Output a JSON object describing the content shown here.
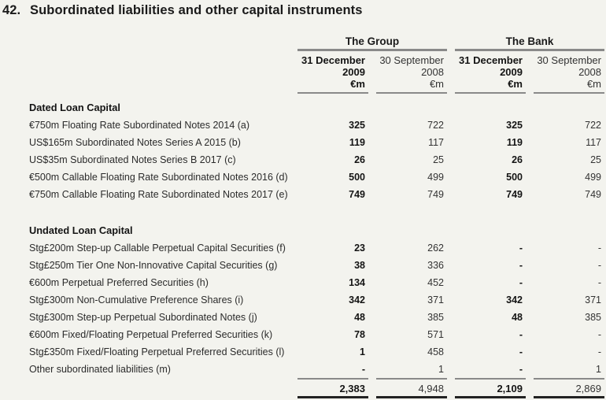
{
  "page": {
    "title_number": "42.",
    "title": "Subordinated liabilities and other capital instruments"
  },
  "colors": {
    "background": "#f3f3ee",
    "rule_gray": "#898989",
    "rule_dark": "#222222",
    "text": "#2d2d2d",
    "text_bold": "#141414"
  },
  "table": {
    "column_groups": [
      {
        "label": "The Group"
      },
      {
        "label": "The Bank"
      }
    ],
    "columns": [
      {
        "line1": "31 December",
        "line2": "2009",
        "line3": "€m",
        "bold": true
      },
      {
        "line1": "30 September",
        "line2": "2008",
        "line3": "€m",
        "bold": false
      },
      {
        "line1": "31 December",
        "line2": "2009",
        "line3": "€m",
        "bold": true
      },
      {
        "line1": "30 September",
        "line2": "2008",
        "line3": "€m",
        "bold": false
      }
    ],
    "sections": [
      {
        "heading": "Dated Loan Capital",
        "rows": [
          {
            "label": "€750m Floating Rate Subordinated Notes 2014 (a)",
            "values": [
              "325",
              "722",
              "325",
              "722"
            ]
          },
          {
            "label": "US$165m Subordinated Notes Series A 2015 (b)",
            "values": [
              "119",
              "117",
              "119",
              "117"
            ]
          },
          {
            "label": "US$35m Subordinated Notes Series B 2017 (c)",
            "values": [
              "26",
              "25",
              "26",
              "25"
            ]
          },
          {
            "label": "€500m Callable Floating Rate Subordinated Notes 2016 (d)",
            "values": [
              "500",
              "499",
              "500",
              "499"
            ]
          },
          {
            "label": "€750m Callable Floating Rate Subordinated Notes 2017 (e)",
            "values": [
              "749",
              "749",
              "749",
              "749"
            ]
          }
        ]
      },
      {
        "heading": "Undated Loan Capital",
        "rows": [
          {
            "label": "Stg£200m Step-up Callable Perpetual Capital Securities (f)",
            "values": [
              "23",
              "262",
              "-",
              "-"
            ]
          },
          {
            "label": "Stg£250m Tier One Non-Innovative Capital Securities  (g)",
            "values": [
              "38",
              "336",
              "-",
              "-"
            ]
          },
          {
            "label": "€600m Perpetual Preferred Securities (h)",
            "values": [
              "134",
              "452",
              "-",
              "-"
            ]
          },
          {
            "label": "Stg£300m Non-Cumulative Preference Shares (i)",
            "values": [
              "342",
              "371",
              "342",
              "371"
            ]
          },
          {
            "label": "Stg£300m Step-up Perpetual Subordinated Notes (j)",
            "values": [
              "48",
              "385",
              "48",
              "385"
            ]
          },
          {
            "label": "€600m Fixed/Floating Perpetual Preferred Securities (k)",
            "values": [
              "78",
              "571",
              "-",
              "-"
            ]
          },
          {
            "label": "Stg£350m Fixed/Floating Perpetual Preferred Securities (l)",
            "values": [
              "1",
              "458",
              "-",
              "-"
            ]
          },
          {
            "label": "Other subordinated liabilities (m)",
            "values": [
              "-",
              "1",
              "-",
              "1"
            ]
          }
        ]
      }
    ],
    "total": {
      "values": [
        "2,383",
        "4,948",
        "2,109",
        "2,869"
      ]
    }
  }
}
